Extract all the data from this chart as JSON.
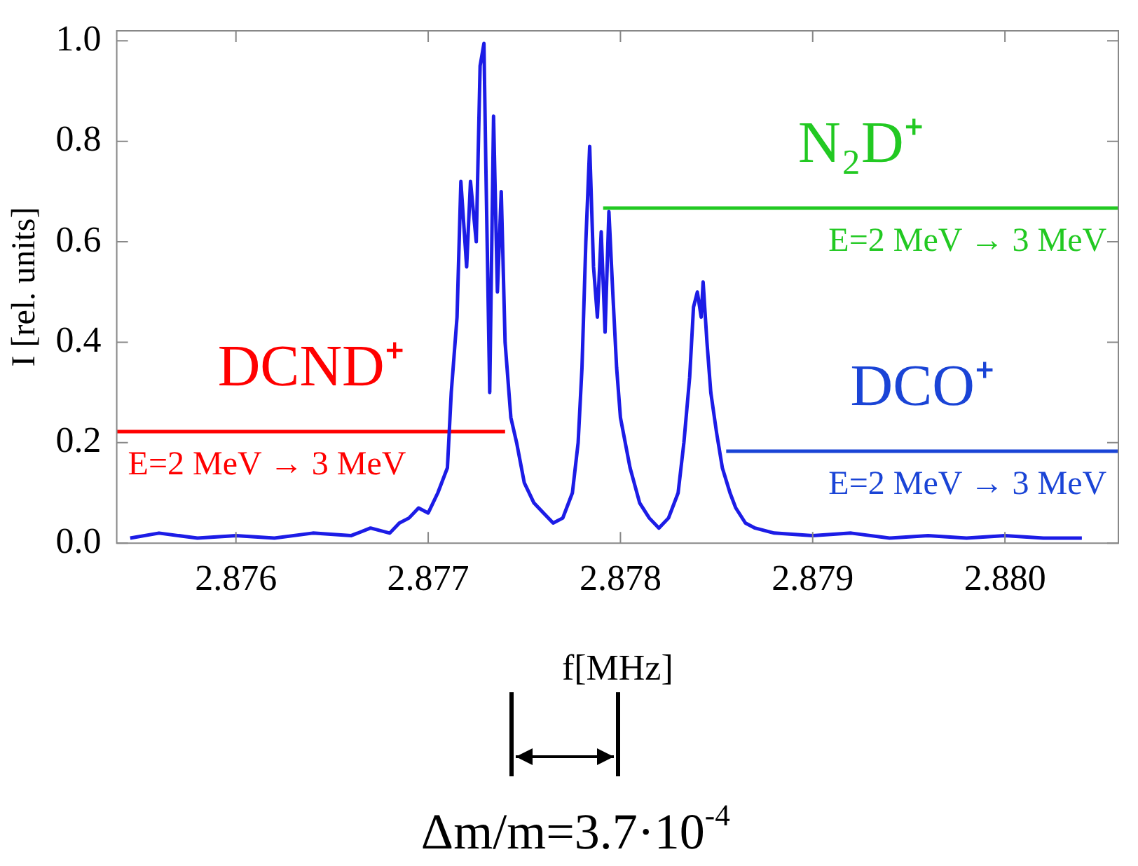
{
  "chart_data": {
    "type": "line",
    "xlabel": "f[MHz]",
    "ylabel": "I [rel. units]",
    "xlim": [
      2.87538,
      2.88059
    ],
    "xticks": [
      {
        "value": 2.876,
        "label": "2.876"
      },
      {
        "value": 2.877,
        "label": "2.877"
      },
      {
        "value": 2.878,
        "label": "2.878"
      },
      {
        "value": 2.879,
        "label": "2.879"
      },
      {
        "value": 2.88,
        "label": "2.880"
      }
    ],
    "ylim": [
      0,
      1.02
    ],
    "yticks": [
      {
        "value": 0,
        "label": "0.0"
      },
      {
        "value": 0.2,
        "label": "0.2"
      },
      {
        "value": 0.4,
        "label": "0.4"
      },
      {
        "value": 0.6,
        "label": "0.6"
      },
      {
        "value": 0.8,
        "label": "0.8"
      },
      {
        "value": 1,
        "label": "1.0"
      }
    ],
    "marker": "none",
    "line_style": "solid",
    "series": [
      {
        "color": "#1c1ce6",
        "x": [
          2.87545,
          2.8756,
          2.8758,
          2.876,
          2.8762,
          2.8764,
          2.8766,
          2.8767,
          2.8768,
          2.87685,
          2.8769,
          2.87695,
          2.877,
          2.87705,
          2.8771,
          2.87712,
          2.87715,
          2.87717,
          2.8772,
          2.87722,
          2.87725,
          2.87727,
          2.87729,
          2.8773,
          2.87732,
          2.87734,
          2.87736,
          2.87738,
          2.8774,
          2.87743,
          2.87746,
          2.8775,
          2.87755,
          2.8776,
          2.87765,
          2.8777,
          2.87775,
          2.87778,
          2.8778,
          2.87782,
          2.87784,
          2.87786,
          2.87788,
          2.8779,
          2.87792,
          2.87794,
          2.87796,
          2.87798,
          2.878,
          2.87805,
          2.8781,
          2.87815,
          2.8782,
          2.87825,
          2.8783,
          2.87833,
          2.87836,
          2.87838,
          2.8784,
          2.87842,
          2.87843,
          2.87845,
          2.87847,
          2.8785,
          2.87853,
          2.87857,
          2.8786,
          2.87865,
          2.8787,
          2.8788,
          2.879,
          2.8792,
          2.8794,
          2.8796,
          2.8798,
          2.88,
          2.8802,
          2.8804
        ],
        "values": [
          0.01,
          0.02,
          0.01,
          0.015,
          0.01,
          0.02,
          0.015,
          0.03,
          0.02,
          0.04,
          0.05,
          0.07,
          0.06,
          0.1,
          0.15,
          0.3,
          0.45,
          0.72,
          0.55,
          0.72,
          0.6,
          0.95,
          0.995,
          0.75,
          0.3,
          0.85,
          0.5,
          0.7,
          0.4,
          0.25,
          0.2,
          0.12,
          0.08,
          0.06,
          0.04,
          0.05,
          0.1,
          0.2,
          0.35,
          0.6,
          0.79,
          0.55,
          0.45,
          0.62,
          0.42,
          0.66,
          0.5,
          0.35,
          0.25,
          0.15,
          0.08,
          0.05,
          0.03,
          0.05,
          0.1,
          0.2,
          0.33,
          0.47,
          0.5,
          0.45,
          0.52,
          0.4,
          0.3,
          0.22,
          0.15,
          0.1,
          0.07,
          0.04,
          0.03,
          0.02,
          0.015,
          0.02,
          0.01,
          0.015,
          0.01,
          0.015,
          0.01,
          0.01
        ]
      },
      {
        "name": "DCND⁺",
        "color": "#ff0000",
        "x": [
          2.87538,
          2.8774
        ],
        "values": [
          0.222,
          0.222
        ]
      },
      {
        "name": "N₂D⁺",
        "color": "#22c922",
        "x": [
          2.87791,
          2.88059
        ],
        "values": [
          0.667,
          0.667
        ]
      },
      {
        "name": "DCO⁺",
        "color": "#1a44d6",
        "x": [
          2.87855,
          2.88059
        ],
        "values": [
          0.183,
          0.183
        ]
      }
    ],
    "annotations": [
      "E=2 MeV → 3 MeV",
      "E=2 MeV → 3 MeV",
      "E=2 MeV → 3 MeV",
      "Δm/m=3.7·10$^{-4}$"
    ]
  }
}
